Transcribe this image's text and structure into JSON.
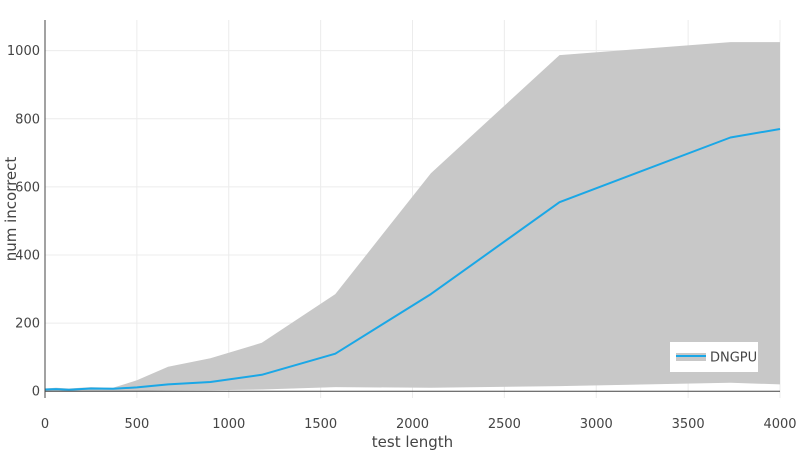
{
  "chart_data": {
    "type": "line",
    "title": "",
    "xlabel": "test length",
    "ylabel": "num incorrect",
    "xlim": [
      0,
      4000
    ],
    "ylim": [
      -20,
      1090
    ],
    "xticks": [
      0,
      500,
      1000,
      1500,
      2000,
      2500,
      3000,
      3500,
      4000
    ],
    "yticks": [
      0,
      200,
      400,
      600,
      800,
      1000
    ],
    "grid": true,
    "legend_position": "bottom-right",
    "series": [
      {
        "name": "DNGPU",
        "color": "#1aa7e6",
        "band_color": "#c8c8c8",
        "x": [
          0,
          60,
          130,
          250,
          370,
          500,
          670,
          900,
          1180,
          1580,
          2100,
          2800,
          3730,
          4000
        ],
        "y": [
          5,
          6,
          4,
          8,
          7,
          11,
          20,
          27,
          48,
          110,
          285,
          555,
          745,
          770
        ],
        "lower": [
          0,
          0,
          0,
          0,
          0,
          0,
          2,
          3,
          5,
          12,
          10,
          15,
          25,
          20
        ],
        "upper": [
          8,
          10,
          8,
          12,
          10,
          32,
          72,
          97,
          142,
          285,
          640,
          987,
          1025,
          1025
        ]
      }
    ]
  }
}
